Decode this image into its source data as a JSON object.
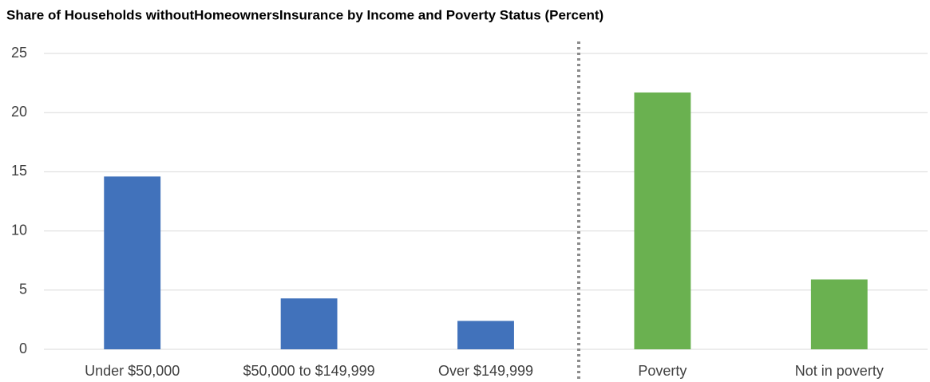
{
  "chart_data": {
    "type": "bar",
    "title": "Share of Households withoutHomeownersInsurance by Income and Poverty Status (Percent)",
    "categories": [
      "Under $50,000",
      "$50,000 to $149,999",
      "Over $149,999",
      "Poverty",
      "Not in poverty"
    ],
    "values": [
      14.6,
      4.3,
      2.4,
      21.7,
      5.9
    ],
    "colors": [
      "#4172bb",
      "#4172bb",
      "#4172bb",
      "#6ab150",
      "#6ab150"
    ],
    "ylim": [
      0,
      25
    ],
    "yticks": [
      0,
      5,
      10,
      15,
      20,
      25
    ],
    "grid": true
  }
}
